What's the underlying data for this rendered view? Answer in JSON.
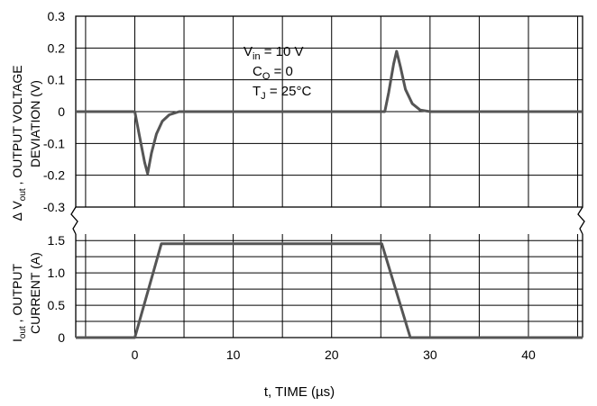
{
  "chart_data": [
    {
      "type": "line",
      "title": "",
      "xlabel": "t, TIME (µs)",
      "ylabel_lines": [
        "∆ Vout , OUTPUT VOLTAGE",
        "DEVIATION (V)"
      ],
      "ylabel_sub": "out",
      "xlim": [
        -6,
        45.5
      ],
      "ylim": [
        -0.3,
        0.3
      ],
      "x_ticks": [
        0,
        10,
        20,
        30,
        40
      ],
      "y_ticks": [
        0.3,
        0.2,
        0.1,
        0,
        -0.1,
        -0.2,
        -0.3
      ],
      "y_tick_labels": [
        "0.3",
        "0.2",
        "0.1",
        "0",
        "-0.1",
        "-0.2",
        "-0.3"
      ],
      "grid": true,
      "annotation": {
        "vin": "= 10 V",
        "co": "= 0",
        "tj": "= 25°C"
      },
      "series": [
        {
          "x": [
            -6,
            0,
            0.5,
            1,
            1.3,
            1.7,
            2.2,
            2.8,
            3.5,
            4.5,
            6,
            25.4,
            25.8,
            26.3,
            26.6,
            27,
            27.5,
            28.2,
            29,
            30,
            45.5
          ],
          "y": [
            0,
            0,
            -0.08,
            -0.16,
            -0.195,
            -0.13,
            -0.07,
            -0.03,
            -0.01,
            0,
            0,
            0,
            0.06,
            0.15,
            0.19,
            0.14,
            0.07,
            0.025,
            0.005,
            0,
            0
          ]
        }
      ]
    },
    {
      "type": "line",
      "title": "",
      "xlabel": "t, TIME (µs)",
      "ylabel_lines": [
        "Iout , OUTPUT",
        "CURRENT (A)"
      ],
      "ylim": [
        0,
        1.6
      ],
      "y_ticks": [
        1.5,
        1.0,
        0.5,
        0
      ],
      "y_tick_labels": [
        "1.5",
        "1.0",
        "0.5",
        "0"
      ],
      "grid": true,
      "series": [
        {
          "x": [
            -6,
            0,
            2.7,
            25.1,
            28,
            45.5
          ],
          "y": [
            0,
            0,
            1.45,
            1.45,
            0,
            0
          ]
        }
      ]
    }
  ]
}
